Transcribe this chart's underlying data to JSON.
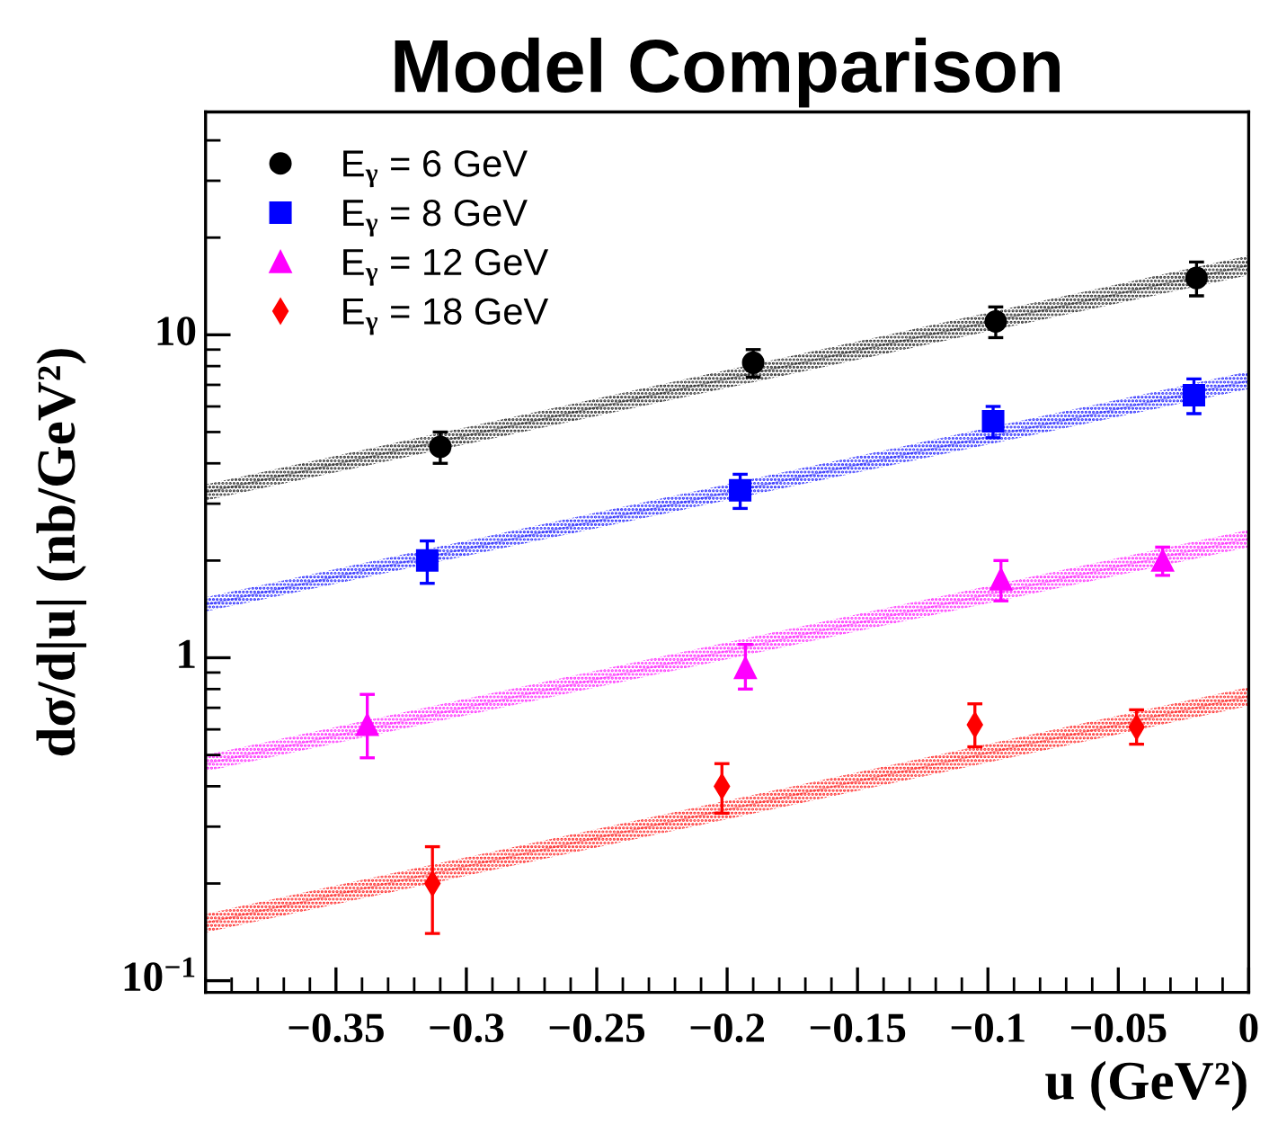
{
  "chart_data": {
    "type": "scatter",
    "title": "Model Comparison",
    "xlabel": "u (GeV²)",
    "ylabel": "dσ/d|u| (nb/GeV²)",
    "log": "y",
    "xlim": [
      -0.4,
      0
    ],
    "xticks": [
      -0.35,
      -0.3,
      -0.25,
      -0.2,
      -0.15,
      -0.1,
      -0.05,
      0
    ],
    "ylim": [
      0.092,
      49
    ],
    "yticks": [
      {
        "value": 0.1,
        "label": "10$^{−1}$"
      },
      1,
      10
    ],
    "legend": "top left",
    "grid": false,
    "series": [
      {
        "type": "line",
        "color": "#000000",
        "x": [
          -0.4,
          0
        ],
        "values": [
          3.25,
          16.4
        ],
        "lower": [
          3.07,
          15.3
        ],
        "upper": [
          3.44,
          17.6
        ]
      },
      {
        "type": "line",
        "color": "#0000ff",
        "x": [
          -0.4,
          0
        ],
        "values": [
          1.46,
          7.2
        ],
        "lower": [
          1.39,
          6.8
        ],
        "upper": [
          1.54,
          7.7
        ]
      },
      {
        "type": "line",
        "color": "#ff00ff",
        "x": [
          -0.4,
          0
        ],
        "values": [
          0.47,
          2.34
        ],
        "lower": [
          0.445,
          2.2
        ],
        "upper": [
          0.5,
          2.49
        ]
      },
      {
        "type": "line",
        "color": "#ff0000",
        "x": [
          -0.4,
          0
        ],
        "values": [
          0.151,
          0.76
        ],
        "lower": [
          0.141,
          0.71
        ],
        "upper": [
          0.161,
          0.81
        ]
      },
      {
        "name": "E$_{γ}$ = 6 GeV",
        "color": "#000000",
        "marker": "circle",
        "x": [
          -0.31,
          -0.19,
          -0.097,
          -0.02
        ],
        "values": [
          4.5,
          8.2,
          11,
          15
        ],
        "errors": [
          0.5,
          0.8,
          1.2,
          1.8
        ]
      },
      {
        "name": "E$_{γ}$ = 8 GeV",
        "color": "#0000ff",
        "marker": "square",
        "x": [
          -0.315,
          -0.195,
          -0.098,
          -0.021
        ],
        "values": [
          2.0,
          3.3,
          5.4,
          6.5
        ],
        "errors": [
          0.3,
          0.4,
          0.6,
          0.8
        ]
      },
      {
        "name": "E$_{γ}$ = 12 GeV",
        "color": "#ff00ff",
        "marker": "triangle",
        "x": [
          -0.338,
          -0.193,
          -0.095,
          -0.033
        ],
        "values": [
          0.62,
          0.93,
          1.75,
          2.0
        ],
        "errors": [
          [
            0.49,
            0.77
          ],
          [
            0.8,
            1.1
          ],
          [
            1.5,
            2.0
          ],
          [
            1.8,
            2.2
          ]
        ]
      },
      {
        "name": "E$_{γ}$ = 18 GeV",
        "color": "#ff0000",
        "marker": "diamond",
        "x": [
          -0.313,
          -0.202,
          -0.105,
          -0.043
        ],
        "values": [
          0.2,
          0.4,
          0.62,
          0.61
        ],
        "errors": [
          [
            0.14,
            0.26
          ],
          [
            0.33,
            0.47
          ],
          [
            0.53,
            0.72
          ],
          [
            0.54,
            0.69
          ]
        ]
      }
    ]
  }
}
